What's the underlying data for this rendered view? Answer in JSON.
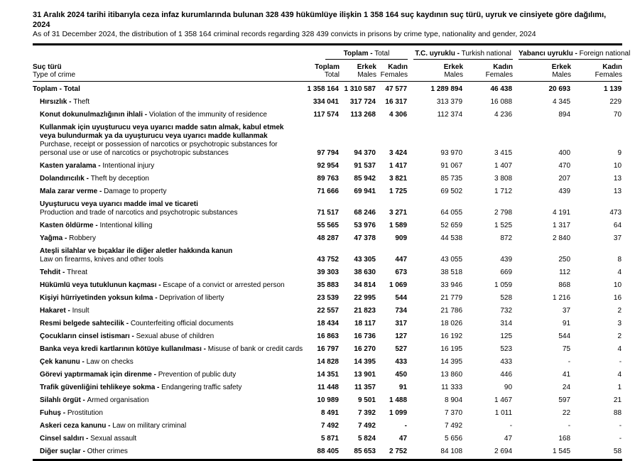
{
  "title": {
    "tr": "31 Aralık 2024 tarihi itibarıyla ceza infaz kurumlarında bulunan 328 439 hükümlüye ilişkin 1 358 164 suç kaydının suç türü, uyruk ve cinsiyete göre dağılımı, 2024",
    "en": "As of 31 December 2024, the distribution of 1 358 164 criminal records regarding 328 439 convicts in prisons by crime type, nationality and gender, 2024"
  },
  "header": {
    "row_label": {
      "tr": "Suç türü",
      "en": "Type of crime"
    },
    "groups": [
      {
        "tr": "Toplam -",
        "en": "Total"
      },
      {
        "tr": "T.C. uyruklu -",
        "en": "Turkish national"
      },
      {
        "tr": "Yabancı uyruklu -",
        "en": "Foreign national"
      }
    ],
    "columns": [
      {
        "tr": "Toplam",
        "en": "Total"
      },
      {
        "tr": "Erkek",
        "en": "Males"
      },
      {
        "tr": "Kadın",
        "en": "Females"
      },
      {
        "tr": "Erkek",
        "en": "Males"
      },
      {
        "tr": "Kadın",
        "en": "Females"
      },
      {
        "tr": "Erkek",
        "en": "Males"
      },
      {
        "tr": "Kadın",
        "en": "Females"
      }
    ]
  },
  "table": {
    "rows": [
      {
        "tr": "Toplam",
        "en": "Total",
        "layout": "inline",
        "total": true,
        "values": [
          "1 358 164",
          "1 310 587",
          "47 577",
          "1 289 894",
          "46 438",
          "20 693",
          "1 139"
        ]
      },
      {
        "tr": "Hırsızlık",
        "en": "Theft",
        "layout": "inline",
        "values": [
          "334 041",
          "317 724",
          "16 317",
          "313 379",
          "16 088",
          "4 345",
          "229"
        ]
      },
      {
        "tr": "Konut dokunulmazlığının ihlali",
        "en": "Violation of the immunity of residence",
        "layout": "inline",
        "values": [
          "117 574",
          "113 268",
          "4 306",
          "112 374",
          "4 236",
          "894",
          "70"
        ]
      },
      {
        "tr": "Kullanmak için uyuşturucu veya uyarıcı madde satın almak, kabul etmek veya bulundurmak ya da uyuşturucu veya uyarıcı madde kullanmak",
        "en": "Purchase, receipt or possession of narcotics or psychotropic substances for personal use or use of narcotics or psychotropic substances",
        "layout": "stacked",
        "values": [
          "97 794",
          "94 370",
          "3 424",
          "93 970",
          "3 415",
          "400",
          "9"
        ]
      },
      {
        "tr": "Kasten yaralama",
        "en": "Intentional injury",
        "layout": "inline",
        "values": [
          "92 954",
          "91 537",
          "1 417",
          "91 067",
          "1 407",
          "470",
          "10"
        ]
      },
      {
        "tr": "Dolandırıcılık",
        "en": "Theft by deception",
        "layout": "inline",
        "values": [
          "89 763",
          "85 942",
          "3 821",
          "85 735",
          "3 808",
          "207",
          "13"
        ]
      },
      {
        "tr": "Mala zarar verme",
        "en": "Damage to property",
        "layout": "inline",
        "values": [
          "71 666",
          "69 941",
          "1 725",
          "69 502",
          "1 712",
          "439",
          "13"
        ]
      },
      {
        "tr": "Uyuşturucu veya uyarıcı madde imal ve ticareti",
        "en": "Production and trade of narcotics and psychotropic substances",
        "layout": "stacked",
        "values": [
          "71 517",
          "68 246",
          "3 271",
          "64 055",
          "2 798",
          "4 191",
          "473"
        ]
      },
      {
        "tr": "Kasten öldürme",
        "en": "Intentional killing",
        "layout": "inline",
        "values": [
          "55 565",
          "53 976",
          "1 589",
          "52 659",
          "1 525",
          "1 317",
          "64"
        ]
      },
      {
        "tr": "Yağma",
        "en": "Robbery",
        "layout": "inline",
        "values": [
          "48 287",
          "47 378",
          "909",
          "44 538",
          "872",
          "2 840",
          "37"
        ]
      },
      {
        "tr": "Ateşli silahlar ve bıçaklar ile diğer aletler hakkında kanun",
        "en": "Law on firearms, knives and other tools",
        "layout": "stacked",
        "values": [
          "43 752",
          "43 305",
          "447",
          "43 055",
          "439",
          "250",
          "8"
        ]
      },
      {
        "tr": "Tehdit",
        "en": "Threat",
        "layout": "inline",
        "values": [
          "39 303",
          "38 630",
          "673",
          "38 518",
          "669",
          "112",
          "4"
        ]
      },
      {
        "tr": "Hükümlü veya tutuklunun kaçması",
        "en": "Escape of a convict or arrested person",
        "layout": "inline",
        "values": [
          "35 883",
          "34 814",
          "1 069",
          "33 946",
          "1 059",
          "868",
          "10"
        ]
      },
      {
        "tr": "Kişiyi hürriyetinden yoksun kılma",
        "en": "Deprivation of liberty",
        "layout": "inline",
        "values": [
          "23 539",
          "22 995",
          "544",
          "21 779",
          "528",
          "1 216",
          "16"
        ]
      },
      {
        "tr": "Hakaret",
        "en": "Insult",
        "layout": "inline",
        "values": [
          "22 557",
          "21 823",
          "734",
          "21 786",
          "732",
          "37",
          "2"
        ]
      },
      {
        "tr": "Resmi belgede sahtecilik",
        "en": "Counterfeiting official documents",
        "layout": "inline",
        "values": [
          "18 434",
          "18 117",
          "317",
          "18 026",
          "314",
          "91",
          "3"
        ]
      },
      {
        "tr": "Çocukların cinsel istismarı",
        "en": "Sexual abuse of children",
        "layout": "inline",
        "values": [
          "16 863",
          "16 736",
          "127",
          "16 192",
          "125",
          "544",
          "2"
        ]
      },
      {
        "tr": "Banka veya kredi kartlarının kötüye kullanılması",
        "en": "Misuse of bank or credit cards",
        "layout": "inline",
        "values": [
          "16 797",
          "16 270",
          "527",
          "16 195",
          "523",
          "75",
          "4"
        ]
      },
      {
        "tr": "Çek kanunu",
        "en": "Law on checks",
        "layout": "inline",
        "values": [
          "14 828",
          "14 395",
          "433",
          "14 395",
          "433",
          "-",
          "-"
        ]
      },
      {
        "tr": "Görevi yaptırmamak için direnme",
        "en": "Prevention of public duty",
        "layout": "inline",
        "values": [
          "14 351",
          "13 901",
          "450",
          "13 860",
          "446",
          "41",
          "4"
        ]
      },
      {
        "tr": "Trafik güvenliğini tehlikeye sokma",
        "en": "Endangering traffic safety",
        "layout": "inline",
        "values": [
          "11 448",
          "11 357",
          "91",
          "11 333",
          "90",
          "24",
          "1"
        ]
      },
      {
        "tr": "Silahlı örgüt",
        "en": "Armed organisation",
        "layout": "inline",
        "values": [
          "10 989",
          "9 501",
          "1 488",
          "8 904",
          "1 467",
          "597",
          "21"
        ]
      },
      {
        "tr": "Fuhuş",
        "en": "Prostitution",
        "layout": "inline",
        "values": [
          "8 491",
          "7 392",
          "1 099",
          "7 370",
          "1 011",
          "22",
          "88"
        ]
      },
      {
        "tr": "Askeri ceza kanunu",
        "en": "Law on military criminal",
        "layout": "inline",
        "values": [
          "7 492",
          "7 492",
          "-",
          "7 492",
          "-",
          "-",
          "-"
        ]
      },
      {
        "tr": "Cinsel saldırı",
        "en": "Sexual assault",
        "layout": "inline",
        "values": [
          "5 871",
          "5 824",
          "47",
          "5 656",
          "47",
          "168",
          "-"
        ]
      },
      {
        "tr": "Diğer suçlar",
        "en": "Other crimes",
        "layout": "inline",
        "values": [
          "88 405",
          "85 653",
          "2 752",
          "84 108",
          "2 694",
          "1 545",
          "58"
        ]
      }
    ]
  },
  "colors": {
    "text": "#000000",
    "background": "#ffffff",
    "rule": "#000000"
  }
}
